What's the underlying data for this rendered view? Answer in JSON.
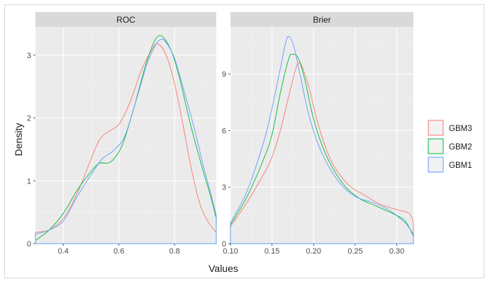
{
  "chart_data": {
    "type": "line",
    "xlabel": "Values",
    "ylabel": "Density",
    "grid": true,
    "legend_position": "right",
    "legend": [
      {
        "name": "GBM3",
        "color": "#F8766D"
      },
      {
        "name": "GBM2",
        "color": "#00BA38"
      },
      {
        "name": "GBM1",
        "color": "#619CFF"
      }
    ],
    "panels": [
      {
        "title": "ROC",
        "xlim": [
          0.3,
          0.95
        ],
        "ylim": [
          0,
          3.45
        ],
        "xticks": [
          0.4,
          0.6,
          0.8
        ],
        "xtick_labels": [
          "0.4",
          "0.6",
          "0.8"
        ],
        "yticks": [
          0,
          1,
          2,
          3
        ],
        "ytick_labels": [
          "0",
          "1",
          "2",
          "3"
        ],
        "series": [
          {
            "name": "GBM3",
            "points": [
              [
                0.3,
                0.18
              ],
              [
                0.35,
                0.22
              ],
              [
                0.4,
                0.4
              ],
              [
                0.45,
                0.8
              ],
              [
                0.5,
                1.35
              ],
              [
                0.53,
                1.65
              ],
              [
                0.56,
                1.78
              ],
              [
                0.6,
                1.9
              ],
              [
                0.64,
                2.25
              ],
              [
                0.68,
                2.75
              ],
              [
                0.72,
                3.1
              ],
              [
                0.74,
                3.18
              ],
              [
                0.77,
                3.0
              ],
              [
                0.8,
                2.55
              ],
              [
                0.83,
                1.9
              ],
              [
                0.86,
                1.2
              ],
              [
                0.89,
                0.65
              ],
              [
                0.92,
                0.35
              ],
              [
                0.95,
                0.18
              ]
            ]
          },
          {
            "name": "GBM2",
            "points": [
              [
                0.3,
                0.05
              ],
              [
                0.35,
                0.22
              ],
              [
                0.4,
                0.48
              ],
              [
                0.45,
                0.85
              ],
              [
                0.5,
                1.15
              ],
              [
                0.53,
                1.28
              ],
              [
                0.57,
                1.3
              ],
              [
                0.61,
                1.55
              ],
              [
                0.65,
                2.1
              ],
              [
                0.69,
                2.75
              ],
              [
                0.72,
                3.15
              ],
              [
                0.74,
                3.3
              ],
              [
                0.76,
                3.28
              ],
              [
                0.79,
                3.05
              ],
              [
                0.82,
                2.6
              ],
              [
                0.86,
                1.85
              ],
              [
                0.9,
                1.2
              ],
              [
                0.93,
                0.75
              ],
              [
                0.95,
                0.4
              ]
            ]
          },
          {
            "name": "GBM1",
            "points": [
              [
                0.3,
                0.15
              ],
              [
                0.35,
                0.22
              ],
              [
                0.4,
                0.36
              ],
              [
                0.45,
                0.75
              ],
              [
                0.5,
                1.1
              ],
              [
                0.54,
                1.35
              ],
              [
                0.58,
                1.48
              ],
              [
                0.62,
                1.7
              ],
              [
                0.66,
                2.25
              ],
              [
                0.7,
                2.85
              ],
              [
                0.73,
                3.15
              ],
              [
                0.75,
                3.25
              ],
              [
                0.77,
                3.2
              ],
              [
                0.8,
                2.95
              ],
              [
                0.83,
                2.5
              ],
              [
                0.87,
                1.85
              ],
              [
                0.9,
                1.3
              ],
              [
                0.93,
                0.8
              ],
              [
                0.95,
                0.45
              ]
            ]
          }
        ]
      },
      {
        "title": "Brier",
        "xlim": [
          0.1,
          0.32
        ],
        "ylim": [
          0,
          11.5
        ],
        "xticks": [
          0.1,
          0.15,
          0.2,
          0.25,
          0.3
        ],
        "xtick_labels": [
          "0.10",
          "0.15",
          "0.20",
          "0.25",
          "0.30"
        ],
        "yticks": [
          0,
          3,
          6,
          9
        ],
        "ytick_labels": [
          "0",
          "3",
          "6",
          "9"
        ],
        "series": [
          {
            "name": "GBM3",
            "points": [
              [
                0.1,
                0.9
              ],
              [
                0.12,
                2.2
              ],
              [
                0.14,
                3.7
              ],
              [
                0.15,
                4.6
              ],
              [
                0.16,
                6.0
              ],
              [
                0.17,
                7.8
              ],
              [
                0.178,
                9.2
              ],
              [
                0.182,
                9.6
              ],
              [
                0.186,
                9.4
              ],
              [
                0.195,
                8.2
              ],
              [
                0.205,
                6.4
              ],
              [
                0.22,
                4.5
              ],
              [
                0.24,
                3.2
              ],
              [
                0.26,
                2.6
              ],
              [
                0.28,
                2.1
              ],
              [
                0.3,
                1.8
              ],
              [
                0.315,
                1.6
              ],
              [
                0.32,
                1.1
              ]
            ]
          },
          {
            "name": "GBM2",
            "points": [
              [
                0.1,
                1.0
              ],
              [
                0.12,
                2.5
              ],
              [
                0.14,
                4.5
              ],
              [
                0.15,
                5.8
              ],
              [
                0.16,
                8.0
              ],
              [
                0.17,
                9.8
              ],
              [
                0.175,
                10.05
              ],
              [
                0.182,
                9.8
              ],
              [
                0.19,
                8.6
              ],
              [
                0.2,
                6.6
              ],
              [
                0.215,
                4.7
              ],
              [
                0.235,
                3.2
              ],
              [
                0.255,
                2.4
              ],
              [
                0.275,
                2.0
              ],
              [
                0.295,
                1.6
              ],
              [
                0.31,
                1.2
              ],
              [
                0.32,
                0.4
              ]
            ]
          },
          {
            "name": "GBM1",
            "points": [
              [
                0.1,
                1.1
              ],
              [
                0.12,
                2.8
              ],
              [
                0.14,
                5.4
              ],
              [
                0.15,
                7.2
              ],
              [
                0.16,
                9.3
              ],
              [
                0.166,
                10.6
              ],
              [
                0.17,
                11.0
              ],
              [
                0.176,
                10.5
              ],
              [
                0.185,
                8.7
              ],
              [
                0.195,
                6.7
              ],
              [
                0.21,
                4.8
              ],
              [
                0.23,
                3.3
              ],
              [
                0.25,
                2.5
              ],
              [
                0.27,
                2.2
              ],
              [
                0.29,
                1.8
              ],
              [
                0.31,
                1.1
              ],
              [
                0.32,
                0.5
              ]
            ]
          }
        ]
      }
    ]
  }
}
